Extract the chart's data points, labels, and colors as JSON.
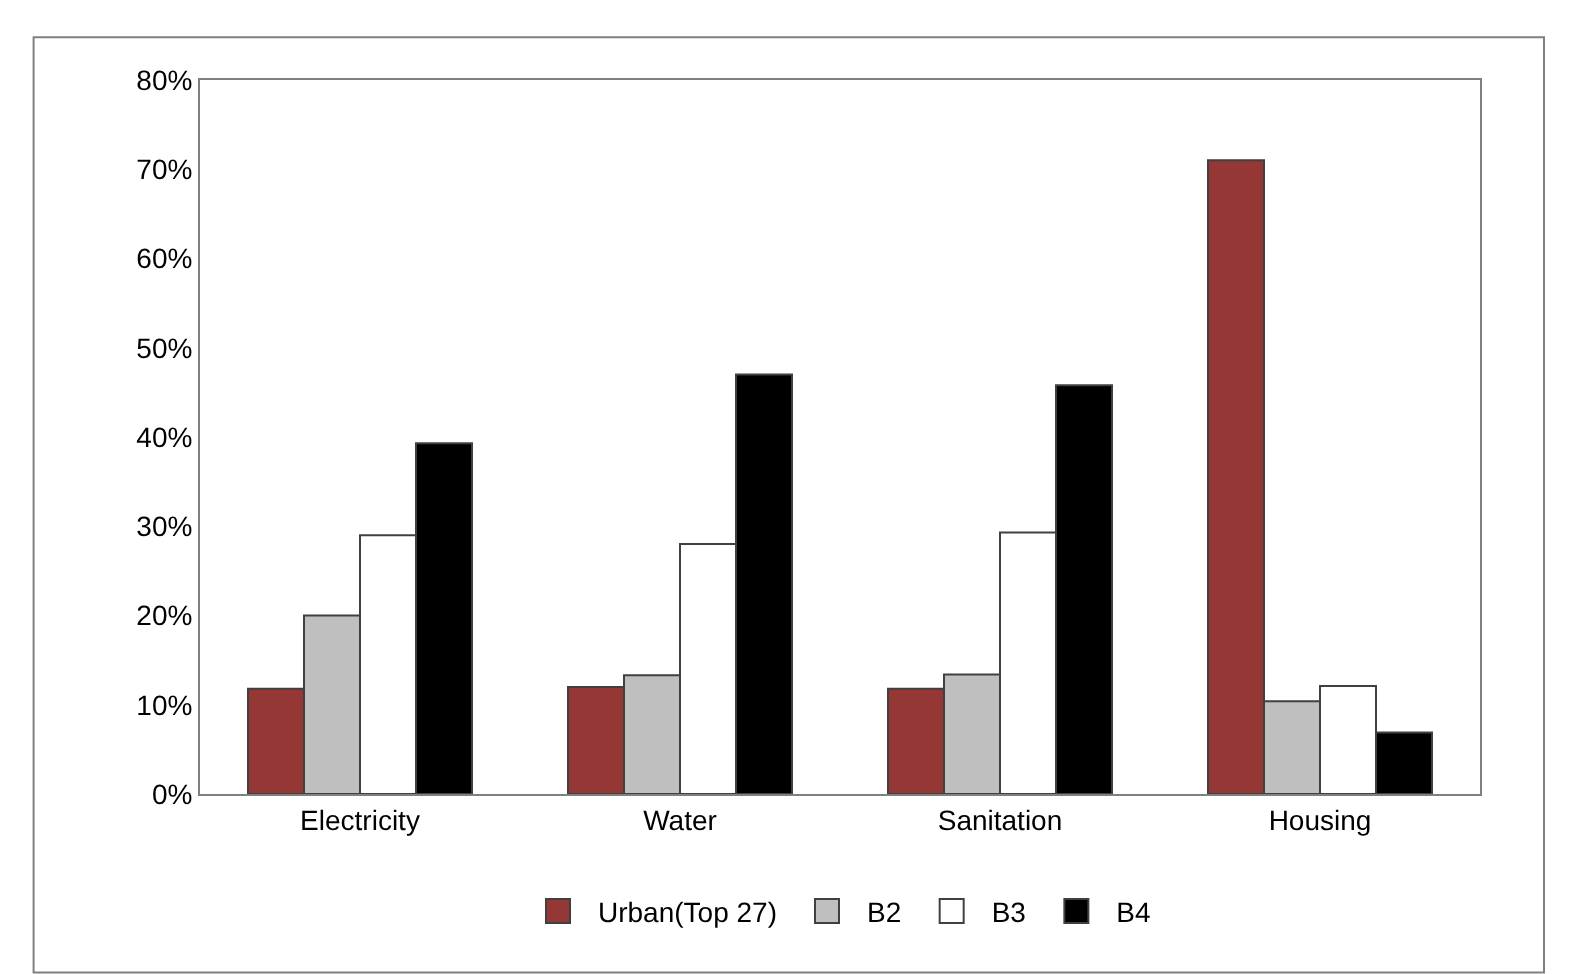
{
  "chart_data": {
    "type": "bar",
    "categories": [
      "Electricity",
      "Water",
      "Sanitation",
      "Housing"
    ],
    "series": [
      {
        "name": "Urban(Top 27)",
        "color": "#953735",
        "values": [
          11.8,
          12,
          11.8,
          71
        ]
      },
      {
        "name": "B2",
        "color": "#bfbfbf",
        "values": [
          20,
          13.3,
          13.4,
          10.4
        ]
      },
      {
        "name": "B3",
        "color": "#ffffff",
        "values": [
          29,
          28,
          29.3,
          12.1
        ]
      },
      {
        "name": "B4",
        "color": "#000000",
        "values": [
          39.3,
          47,
          45.8,
          6.9
        ]
      }
    ],
    "ylim": [
      0,
      80
    ],
    "yticks": [
      {
        "value": 0,
        "label": "0%"
      },
      {
        "value": 10,
        "label": "10%"
      },
      {
        "value": 20,
        "label": "20%"
      },
      {
        "value": 30,
        "label": "30%"
      },
      {
        "value": 40,
        "label": "40%"
      },
      {
        "value": 50,
        "label": "50%"
      },
      {
        "value": 60,
        "label": "60%"
      },
      {
        "value": 70,
        "label": "70%"
      },
      {
        "value": 80,
        "label": "80%"
      }
    ],
    "grid": false,
    "legend": "bottom"
  }
}
